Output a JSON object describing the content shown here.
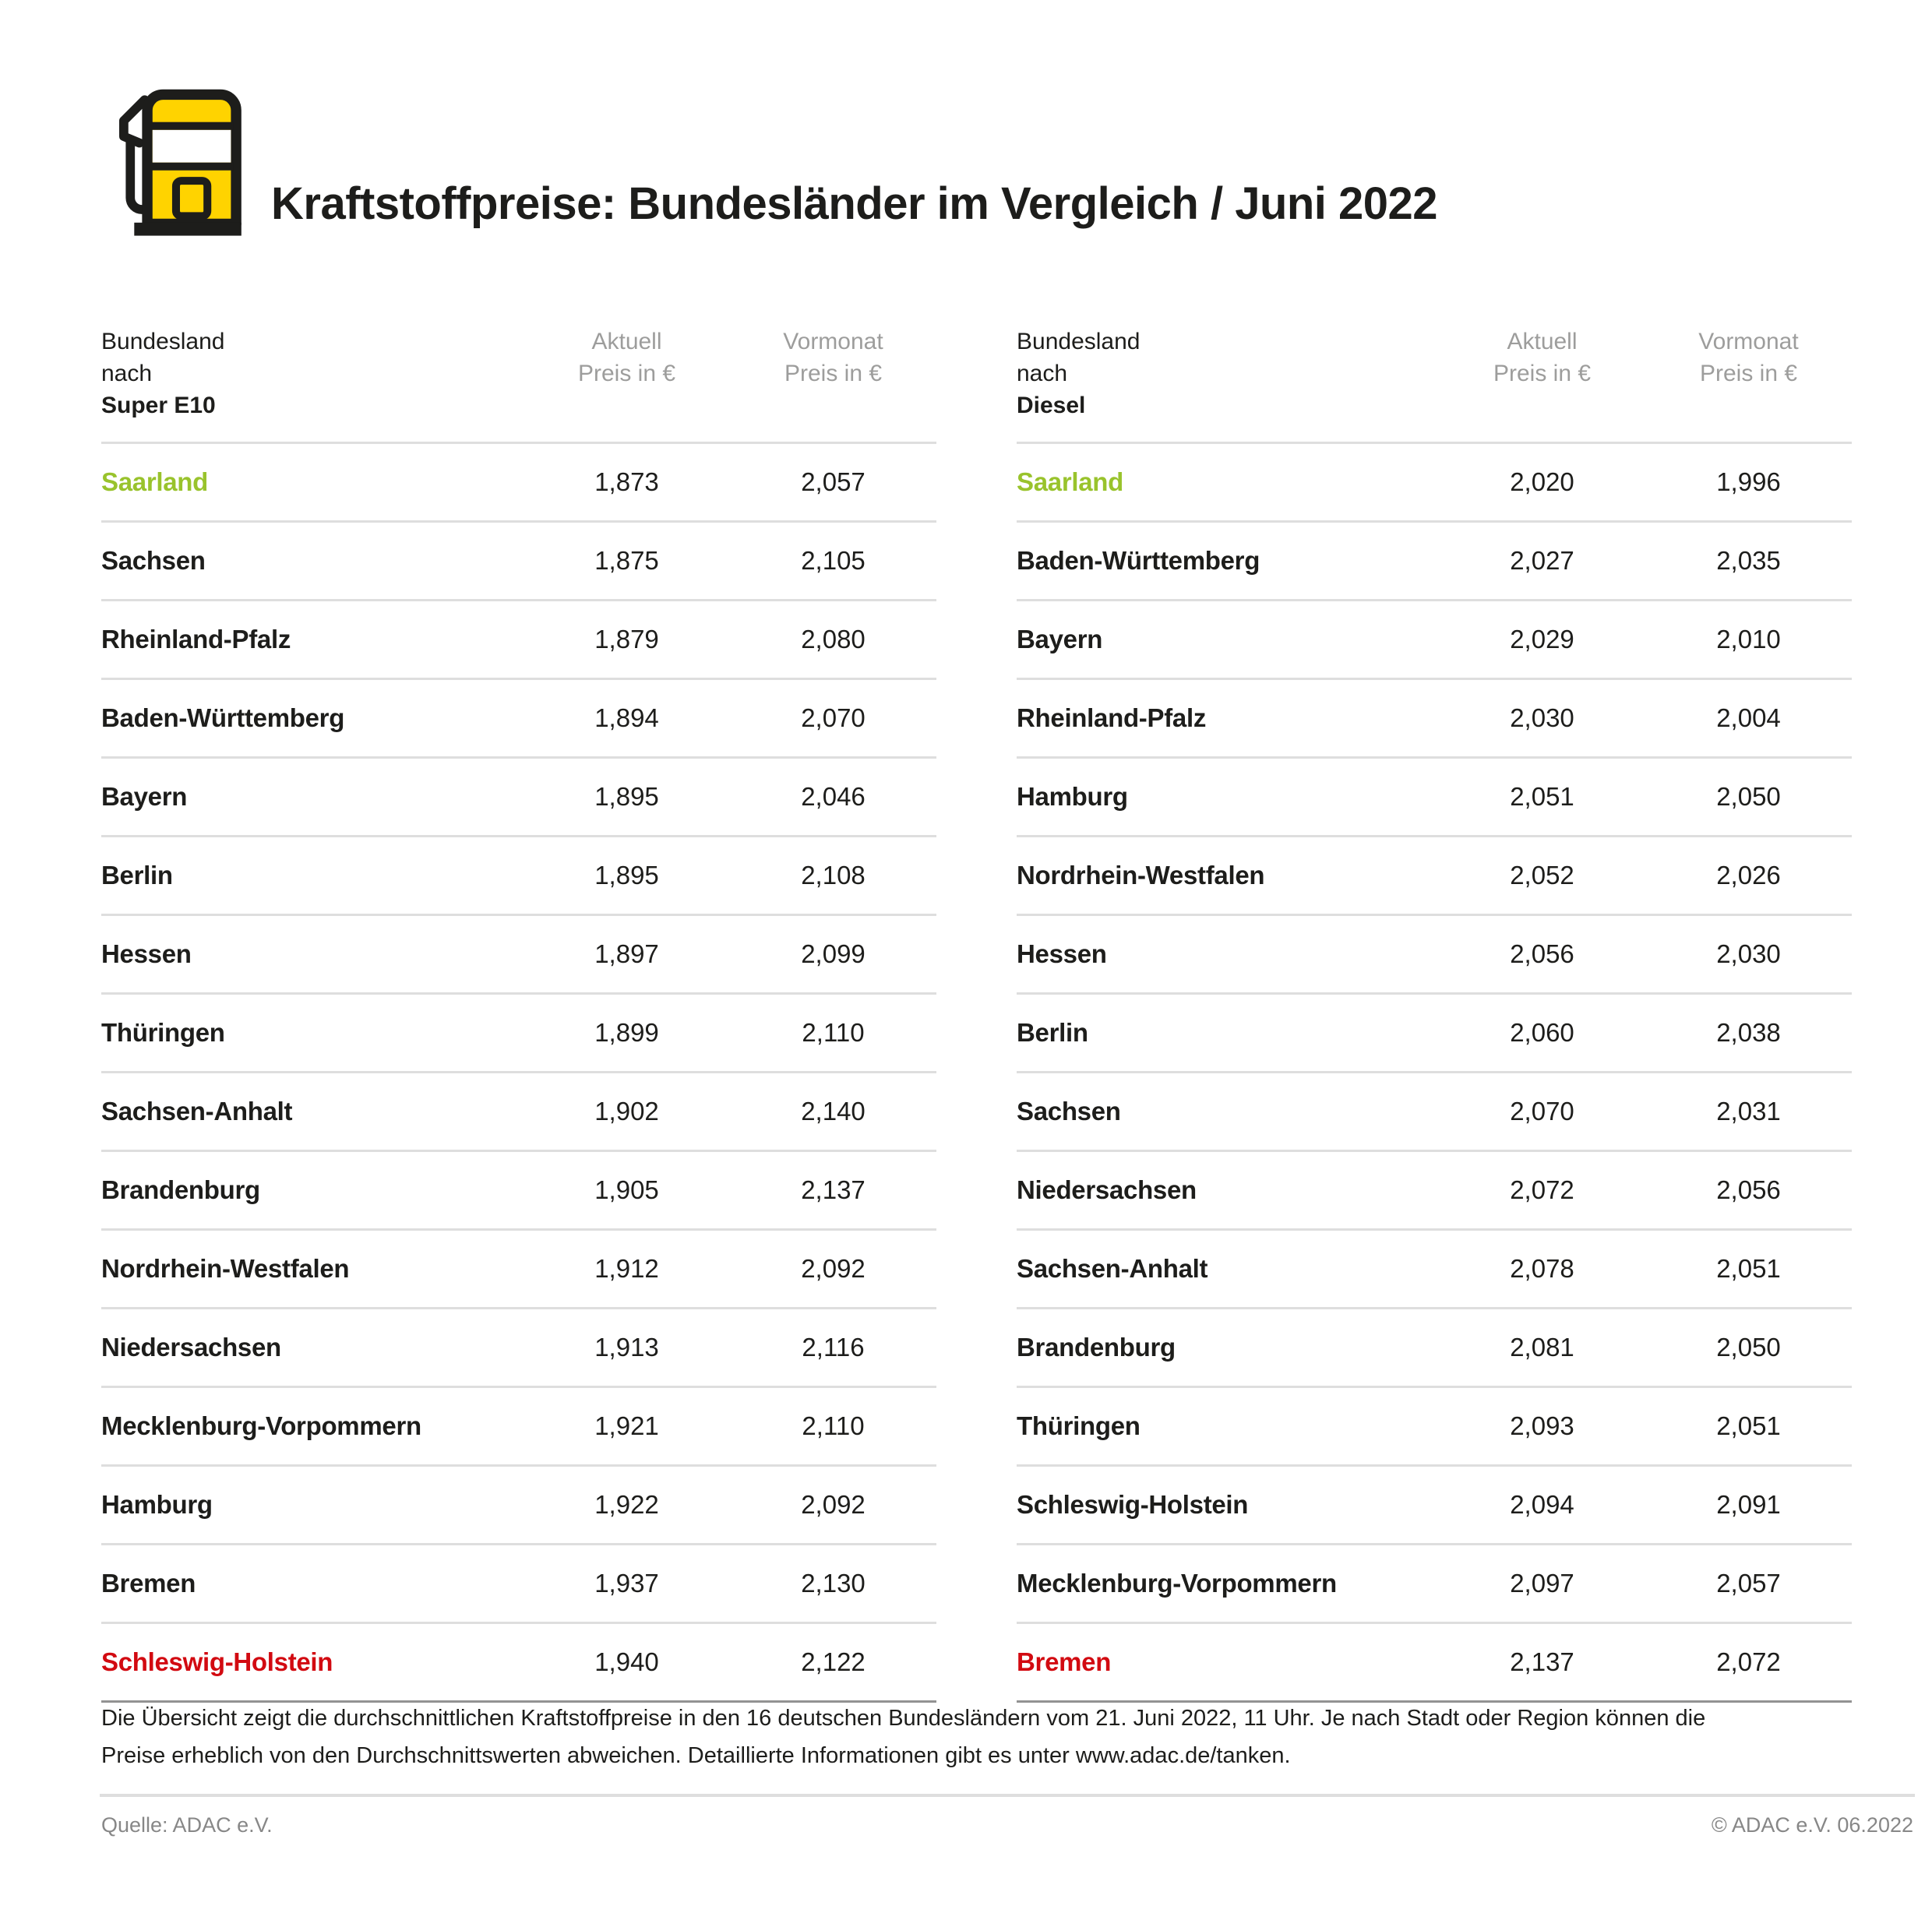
{
  "title": "Kraftstoffpreise: Bundesländer im Vergleich / Juni 2022",
  "colors": {
    "accent_yellow": "#FFD300",
    "cheapest_green": "#99C32C",
    "most_expensive_red": "#D20A11",
    "text_dark": "#1D1D1B",
    "header_gray": "#9D9D9C"
  },
  "chart_data": {
    "type": "table",
    "title": "Kraftstoffpreise: Bundesländer im Vergleich / Juni 2022",
    "unit": "EUR",
    "tables": [
      {
        "name": "Super E10",
        "header": {
          "state_line1": "Bundesland",
          "state_line2_prefix": "nach ",
          "state_line2_bold": "Super E10",
          "current_line1": "Aktuell",
          "current_line2": "Preis in €",
          "previous_line1": "Vormonat",
          "previous_line2": "Preis in €"
        },
        "rows": [
          {
            "state": "Saarland",
            "current": "1,873",
            "previous": "2,057",
            "highlight": "green"
          },
          {
            "state": "Sachsen",
            "current": "1,875",
            "previous": "2,105"
          },
          {
            "state": "Rheinland-Pfalz",
            "current": "1,879",
            "previous": "2,080"
          },
          {
            "state": "Baden-Württemberg",
            "current": "1,894",
            "previous": "2,070"
          },
          {
            "state": "Bayern",
            "current": "1,895",
            "previous": "2,046"
          },
          {
            "state": "Berlin",
            "current": "1,895",
            "previous": "2,108"
          },
          {
            "state": "Hessen",
            "current": "1,897",
            "previous": "2,099"
          },
          {
            "state": "Thüringen",
            "current": "1,899",
            "previous": "2,110"
          },
          {
            "state": "Sachsen-Anhalt",
            "current": "1,902",
            "previous": "2,140"
          },
          {
            "state": "Brandenburg",
            "current": "1,905",
            "previous": "2,137"
          },
          {
            "state": "Nordrhein-Westfalen",
            "current": "1,912",
            "previous": "2,092"
          },
          {
            "state": "Niedersachsen",
            "current": "1,913",
            "previous": "2,116"
          },
          {
            "state": "Mecklenburg-Vorpommern",
            "current": "1,921",
            "previous": "2,110"
          },
          {
            "state": "Hamburg",
            "current": "1,922",
            "previous": "2,092"
          },
          {
            "state": "Bremen",
            "current": "1,937",
            "previous": "2,130"
          },
          {
            "state": "Schleswig-Holstein",
            "current": "1,940",
            "previous": "2,122",
            "highlight": "red"
          }
        ]
      },
      {
        "name": "Diesel",
        "header": {
          "state_line1": "Bundesland",
          "state_line2_prefix": "nach ",
          "state_line2_bold": "Diesel",
          "current_line1": "Aktuell",
          "current_line2": "Preis in €",
          "previous_line1": "Vormonat",
          "previous_line2": "Preis in €"
        },
        "rows": [
          {
            "state": "Saarland",
            "current": "2,020",
            "previous": "1,996",
            "highlight": "green"
          },
          {
            "state": "Baden-Württemberg",
            "current": "2,027",
            "previous": "2,035"
          },
          {
            "state": "Bayern",
            "current": "2,029",
            "previous": "2,010"
          },
          {
            "state": "Rheinland-Pfalz",
            "current": "2,030",
            "previous": "2,004"
          },
          {
            "state": "Hamburg",
            "current": "2,051",
            "previous": "2,050"
          },
          {
            "state": "Nordrhein-Westfalen",
            "current": "2,052",
            "previous": "2,026"
          },
          {
            "state": "Hessen",
            "current": "2,056",
            "previous": "2,030"
          },
          {
            "state": "Berlin",
            "current": "2,060",
            "previous": "2,038"
          },
          {
            "state": "Sachsen",
            "current": "2,070",
            "previous": "2,031"
          },
          {
            "state": "Niedersachsen",
            "current": "2,072",
            "previous": "2,056"
          },
          {
            "state": "Sachsen-Anhalt",
            "current": "2,078",
            "previous": "2,051"
          },
          {
            "state": "Brandenburg",
            "current": "2,081",
            "previous": "2,050"
          },
          {
            "state": "Thüringen",
            "current": "2,093",
            "previous": "2,051"
          },
          {
            "state": "Schleswig-Holstein",
            "current": "2,094",
            "previous": "2,091"
          },
          {
            "state": "Mecklenburg-Vorpommern",
            "current": "2,097",
            "previous": "2,057"
          },
          {
            "state": "Bremen",
            "current": "2,137",
            "previous": "2,072",
            "highlight": "red"
          }
        ]
      }
    ]
  },
  "footnote": {
    "line1": "Die Übersicht zeigt die durchschnittlichen Kraftstoffpreise in den 16 deutschen Bundesländern vom 21. Juni 2022, 11 Uhr. Je nach Stadt oder Region können die",
    "line2": "Preise erheblich von den Durchschnittswerten abweichen. Detaillierte Informationen gibt es unter www.adac.de/tanken."
  },
  "source": "Quelle: ADAC e.V.",
  "copyright": "© ADAC e.V. 06.2022"
}
